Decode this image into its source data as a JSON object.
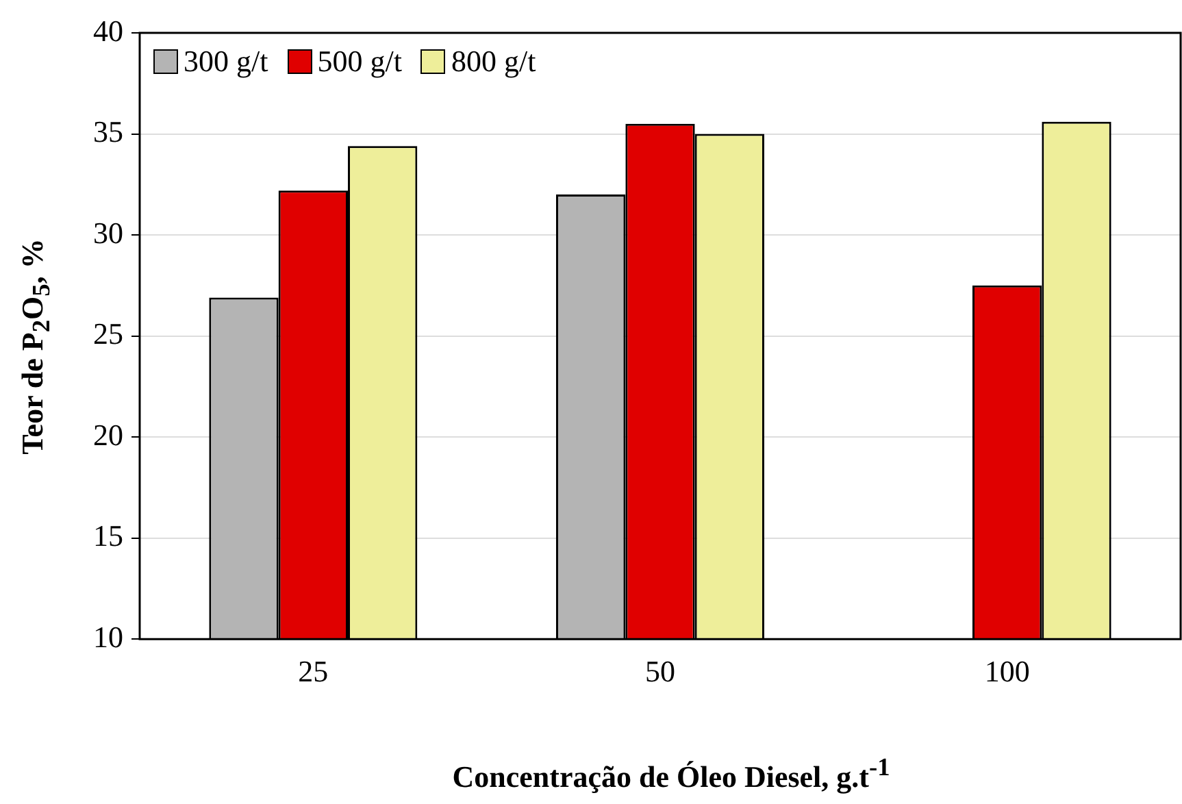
{
  "chart_data": {
    "type": "bar",
    "xlabel": "Concentração de Óleo Diesel, g.t$^{-1}$",
    "ylabel": "Teor de P$_{2}$O$_{5}$, %",
    "categories": [
      "25",
      "50",
      "100"
    ],
    "series": [
      {
        "name": "300 g/t",
        "color": "#b4b4b4",
        "values": [
          26.9,
          32.0,
          null
        ]
      },
      {
        "name": "500 g/t",
        "color": "#e00000",
        "values": [
          32.2,
          35.5,
          27.5
        ]
      },
      {
        "name": "800 g/t",
        "color": "#eeee9a",
        "values": [
          34.4,
          35.0,
          35.6
        ]
      }
    ],
    "ylim": [
      10,
      40
    ],
    "yticks": [
      10,
      15,
      20,
      25,
      30,
      35,
      40
    ],
    "grid": "y",
    "legend": "top left"
  }
}
